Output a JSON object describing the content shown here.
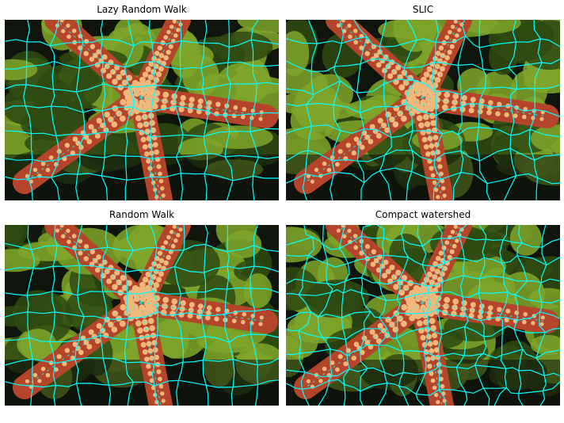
{
  "figure": {
    "panels": [
      {
        "title": "Lazy Random Walk",
        "method": "lazy-random-walk"
      },
      {
        "title": "SLIC",
        "method": "slic"
      },
      {
        "title": "Random Walk",
        "method": "random-walk"
      },
      {
        "title": "Compact watershed",
        "method": "compact-watershed"
      }
    ]
  },
  "colors": {
    "boundary": "#00ffff",
    "algae_light": "#7fa62a",
    "algae_dark": "#2f4a12",
    "background_dark": "#0f140c",
    "star_body": "#b5452a",
    "star_bump": "#f2b77a"
  }
}
